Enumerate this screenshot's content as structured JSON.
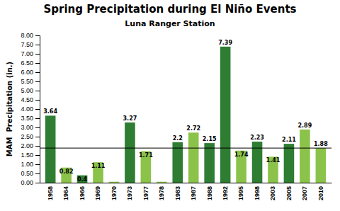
{
  "chart_data": {
    "type": "bar",
    "title": "Spring Precipitation during El Niño Events",
    "subtitle": "Luna Ranger Station",
    "ylabel": "MAM  Precipitation (in.)",
    "categories": [
      "1958",
      "1964",
      "1966",
      "1969",
      "1970",
      "1973",
      "1977",
      "1978",
      "1983",
      "1987",
      "1988",
      "1992",
      "1995",
      "1998",
      "2003",
      "2005",
      "2007",
      "2010"
    ],
    "values": [
      3.64,
      0.82,
      0.4,
      1.11,
      0.05,
      3.27,
      1.71,
      0.05,
      2.2,
      2.72,
      2.15,
      7.39,
      1.74,
      2.23,
      1.41,
      2.11,
      2.89,
      1.88
    ],
    "value_labels": [
      "3.64",
      "0.82",
      "0.4",
      "1.11",
      null,
      "3.27",
      "1.71",
      null,
      "2.2",
      "2.72",
      "2.15",
      "7.39",
      "1.74",
      "2.23",
      "1.41",
      "2.11",
      "2.89",
      "1.88"
    ],
    "colors": [
      "#2e7d32",
      "#8bc34a",
      "#2e7d32",
      "#8bc34a",
      "#8bc34a",
      "#2e7d32",
      "#8bc34a",
      "#8bc34a",
      "#2e7d32",
      "#8bc34a",
      "#2e7d32",
      "#2e7d32",
      "#8bc34a",
      "#2e7d32",
      "#8bc34a",
      "#2e7d32",
      "#8bc34a",
      "#8bc34a"
    ],
    "data_labels": true,
    "mean_line": 1.88,
    "ylim": [
      0.0,
      8.0
    ],
    "yticks": [
      {
        "value": 0.0,
        "label": "0.00"
      },
      {
        "value": 0.5,
        "label": "0.50"
      },
      {
        "value": 1.0,
        "label": "1.00"
      },
      {
        "value": 1.5,
        "label": "1.50"
      },
      {
        "value": 2.0,
        "label": "2.00"
      },
      {
        "value": 2.5,
        "label": "2.50"
      },
      {
        "value": 3.0,
        "label": "3.00"
      },
      {
        "value": 3.5,
        "label": "3.50"
      },
      {
        "value": 4.0,
        "label": "4.00"
      },
      {
        "value": 4.5,
        "label": "4.50"
      },
      {
        "value": 5.0,
        "label": "5.00"
      },
      {
        "value": 5.5,
        "label": "5.50"
      },
      {
        "value": 6.0,
        "label": "6.00"
      },
      {
        "value": 6.5,
        "label": "6.50"
      },
      {
        "value": 7.0,
        "label": "7.00"
      },
      {
        "value": 7.5,
        "label": "7.50"
      },
      {
        "value": 8.0,
        "label": "8.00"
      }
    ]
  }
}
